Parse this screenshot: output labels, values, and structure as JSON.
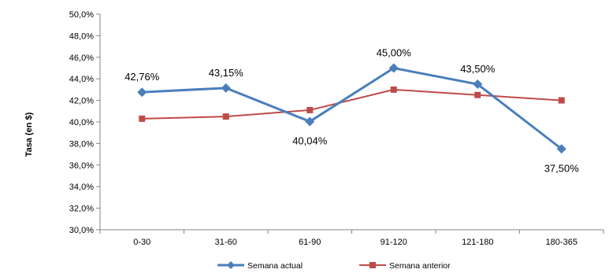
{
  "chart_data": {
    "type": "line",
    "title": "",
    "xlabel": "",
    "ylabel": "Tasa (en $)",
    "ylim": [
      30,
      50
    ],
    "y_step": 2,
    "categories": [
      "0-30",
      "31-60",
      "61-90",
      "91-120",
      "121-180",
      "180-365"
    ],
    "series": [
      {
        "name": "Semana actual",
        "color": "#4A7EBB",
        "marker": "diamond",
        "values": [
          42.76,
          43.15,
          40.04,
          45.0,
          43.5,
          37.5
        ],
        "data_labels": [
          "42,76%",
          "43,15%",
          "40,04%",
          "45,00%",
          "43,50%",
          "37,50%"
        ]
      },
      {
        "name": "Semana anterior",
        "color": "#BE4B48",
        "marker": "square",
        "values": [
          40.3,
          40.5,
          41.1,
          43.0,
          42.5,
          42.0
        ]
      }
    ],
    "grid": false,
    "legend": "bottom"
  }
}
